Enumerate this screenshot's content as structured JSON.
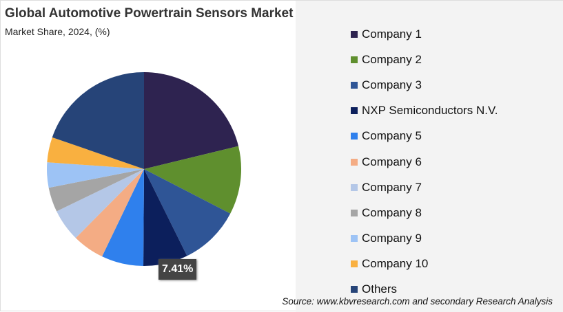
{
  "chart_data": {
    "type": "pie",
    "title": "Global Automotive Powertrain Sensors Market",
    "subtitle": "Market Share, 2024, (%)",
    "categories": [
      "Company 1",
      "Company 2",
      "Company 3",
      "NXP Semiconductors N.V.",
      "Company 5",
      "Company 6",
      "Company 7",
      "Company 8",
      "Company 9",
      "Company 10",
      "Others"
    ],
    "values": [
      21.2,
      11.4,
      10.1,
      7.41,
      7.0,
      5.3,
      5.4,
      4.1,
      4.2,
      4.2,
      19.69
    ],
    "colors": [
      "#2e2350",
      "#5f8f2e",
      "#2f5596",
      "#0c1f5c",
      "#2f80ed",
      "#f4ac84",
      "#b4c7e7",
      "#a5a5a5",
      "#9dc3f5",
      "#f9b040",
      "#264478"
    ],
    "data_label": "7.41%",
    "legend_position": "right",
    "source": "Source: www.kbvresearch.com and secondary Research Analysis"
  }
}
